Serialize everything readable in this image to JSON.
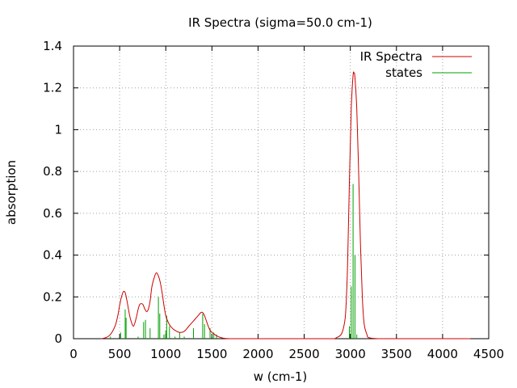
{
  "chart_data": {
    "type": "line",
    "title": "IR Spectra (sigma=50.0 cm-1)",
    "xlabel": "w (cm-1)",
    "ylabel": "absorption",
    "xlim": [
      0,
      4500
    ],
    "ylim": [
      0,
      1.4
    ],
    "xticks": [
      0,
      500,
      1000,
      1500,
      2000,
      2500,
      3000,
      3500,
      4000,
      4500
    ],
    "yticks": [
      0,
      0.2,
      0.4,
      0.6,
      0.8,
      1,
      1.2,
      1.4
    ],
    "xtick_labels": [
      "0",
      "500",
      "1000",
      "1500",
      "2000",
      "2500",
      "3000",
      "3500",
      "4000",
      "4500"
    ],
    "ytick_labels": [
      "0",
      "0.2",
      "0.4",
      "0.6",
      "0.8",
      "1",
      "1.2",
      "1.4"
    ],
    "grid": true,
    "legend_position": "top-right",
    "series": [
      {
        "name": "IR Spectra",
        "kind": "curve",
        "color": "#cc0000",
        "x": [
          300,
          350,
          400,
          450,
          480,
          500,
          520,
          540,
          560,
          580,
          600,
          620,
          650,
          680,
          700,
          720,
          750,
          770,
          790,
          810,
          830,
          850,
          880,
          900,
          920,
          940,
          960,
          980,
          1000,
          1030,
          1060,
          1100,
          1150,
          1200,
          1250,
          1300,
          1350,
          1380,
          1400,
          1420,
          1440,
          1460,
          1480,
          1500,
          1530,
          1560,
          1600,
          1650,
          1700,
          1800,
          2000,
          2500,
          2800,
          2850,
          2900,
          2930,
          2950,
          2970,
          2990,
          3010,
          3030,
          3040,
          3050,
          3070,
          3090,
          3110,
          3130,
          3150,
          3180,
          3200,
          3300,
          3500,
          4000,
          4300
        ],
        "y": [
          0.0,
          0.005,
          0.02,
          0.06,
          0.11,
          0.16,
          0.2,
          0.225,
          0.22,
          0.18,
          0.13,
          0.09,
          0.06,
          0.1,
          0.14,
          0.165,
          0.165,
          0.145,
          0.13,
          0.14,
          0.18,
          0.25,
          0.3,
          0.315,
          0.3,
          0.27,
          0.22,
          0.16,
          0.11,
          0.075,
          0.055,
          0.04,
          0.03,
          0.035,
          0.06,
          0.085,
          0.11,
          0.125,
          0.125,
          0.11,
          0.085,
          0.06,
          0.04,
          0.03,
          0.02,
          0.012,
          0.005,
          0.001,
          0.0,
          0.0,
          0.0,
          0.0,
          0.0,
          0.005,
          0.02,
          0.06,
          0.13,
          0.35,
          0.75,
          1.1,
          1.26,
          1.27,
          1.25,
          1.1,
          0.8,
          0.45,
          0.2,
          0.07,
          0.02,
          0.005,
          0.0,
          0.0,
          0.0,
          0.0
        ]
      },
      {
        "name": "states",
        "kind": "impulses",
        "color": "#00a000",
        "x": [
          400,
          510,
          560,
          570,
          700,
          760,
          780,
          830,
          920,
          935,
          980,
          1000,
          1010,
          1040,
          1100,
          1150,
          1200,
          1300,
          1400,
          1420,
          1480,
          1520,
          1550,
          2990,
          3010,
          3030,
          3050,
          3070
        ],
        "y": [
          0.01,
          0.03,
          0.14,
          0.1,
          0.01,
          0.08,
          0.09,
          0.05,
          0.2,
          0.12,
          0.02,
          0.04,
          0.11,
          0.06,
          0.01,
          0.03,
          0.01,
          0.05,
          0.12,
          0.07,
          0.05,
          0.03,
          0.02,
          0.06,
          0.25,
          0.74,
          0.4,
          0.02
        ]
      }
    ]
  }
}
